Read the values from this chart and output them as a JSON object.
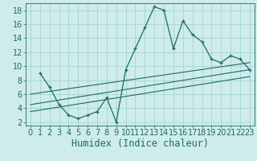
{
  "title": "",
  "xlabel": "Humidex (Indice chaleur)",
  "ylabel": "",
  "bg_color": "#ceecea",
  "grid_color": "#9ecfcc",
  "line_color": "#1a6b6b",
  "marker_color": "#1a6b6b",
  "xlim": [
    -0.5,
    23.5
  ],
  "ylim": [
    1.5,
    19
  ],
  "xticks": [
    0,
    1,
    2,
    3,
    4,
    5,
    6,
    7,
    8,
    9,
    10,
    11,
    12,
    13,
    14,
    15,
    16,
    17,
    18,
    19,
    20,
    21,
    22,
    23
  ],
  "yticks": [
    2,
    4,
    6,
    8,
    10,
    12,
    14,
    16,
    18
  ],
  "line1_x": [
    1,
    2,
    3,
    4,
    5,
    6,
    7,
    8,
    9,
    10,
    11,
    12,
    13,
    14,
    15,
    16,
    17,
    18,
    19,
    20,
    21,
    22,
    23
  ],
  "line1_y": [
    9,
    7,
    4.5,
    3,
    2.5,
    3,
    3.5,
    5.5,
    2,
    9.5,
    12.5,
    15.5,
    18.5,
    18,
    12.5,
    16.5,
    14.5,
    13.5,
    11,
    10.5,
    11.5,
    11,
    9.5
  ],
  "line2_x": [
    0,
    23
  ],
  "line2_y": [
    3.5,
    8.5
  ],
  "line3_x": [
    0,
    23
  ],
  "line3_y": [
    4.5,
    9.5
  ],
  "line4_x": [
    0,
    23
  ],
  "line4_y": [
    6,
    10.5
  ],
  "font_color": "#1a6b6b",
  "tick_font_size": 7,
  "label_font_size": 8.5
}
